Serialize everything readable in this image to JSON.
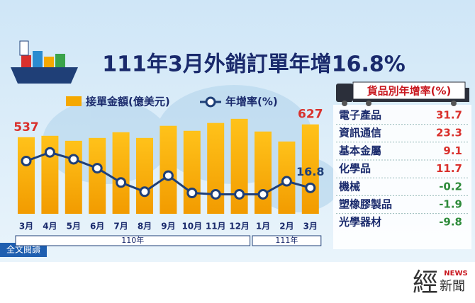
{
  "chart_data": {
    "type": "bar",
    "title": "111年3月外銷訂單年增16.8%",
    "categories": [
      "3月",
      "4月",
      "5月",
      "6月",
      "7月",
      "8月",
      "9月",
      "10月",
      "11月",
      "12月",
      "1月",
      "2月",
      "3月"
    ],
    "year_groups": [
      {
        "label": "110年",
        "span": [
          0,
          9
        ]
      },
      {
        "label": "111年",
        "span": [
          10,
          12
        ]
      }
    ],
    "ylim": [
      0,
      700
    ],
    "y2lim": [
      0,
      70
    ],
    "series": [
      {
        "name": "接單金額(億美元)",
        "type": "bar",
        "color": "#f5a800",
        "values": [
          537,
          547,
          512,
          532,
          572,
          532,
          617,
          582,
          637,
          666,
          577,
          507,
          627
        ],
        "value_labels": [
          "537",
          null,
          null,
          null,
          null,
          null,
          null,
          null,
          null,
          null,
          null,
          null,
          "627"
        ]
      },
      {
        "name": "年增率(%)",
        "type": "line",
        "axis": "y2",
        "color": "#1f3f77",
        "values": [
          36.3,
          42.6,
          37.6,
          31.1,
          20.7,
          14.0,
          25.7,
          13.1,
          12.1,
          12.1,
          12.1,
          21.6,
          16.8
        ],
        "value_labels": [
          null,
          null,
          null,
          null,
          null,
          null,
          null,
          null,
          null,
          null,
          null,
          null,
          "16.8"
        ]
      }
    ]
  },
  "side_table": {
    "title": "貨品別年增率(%)",
    "rows": [
      [
        "電子產品",
        31.7
      ],
      [
        "資訊通信",
        23.3
      ],
      [
        "基本金屬",
        9.1
      ],
      [
        "化學品",
        11.7
      ],
      [
        "機械",
        -0.2
      ],
      [
        "塑橡膠製品",
        -1.9
      ],
      [
        "光學器材",
        -9.8
      ]
    ]
  },
  "button": "全文閱讀",
  "logo": {
    "main": "經",
    "tag": "NEWS",
    "sub": "新聞"
  }
}
